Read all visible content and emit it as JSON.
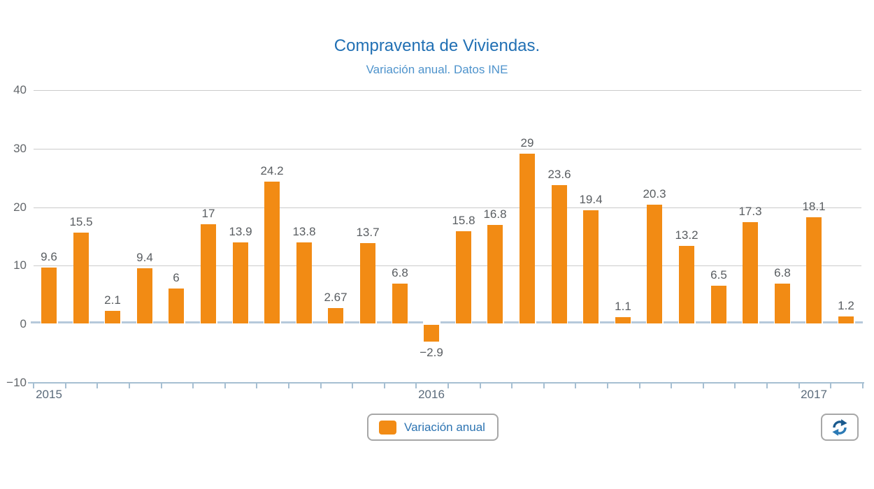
{
  "header": {
    "title": "Compraventa de Viviendas.",
    "subtitle": "Variación anual. Datos INE"
  },
  "legend": {
    "label": "Variación anual"
  },
  "icons": {
    "refresh": "refresh-icon",
    "legend_swatch": "legend-swatch-icon"
  },
  "colors": {
    "bar": "#f28b14",
    "title": "#2170b4",
    "subtitle": "#4e93cc",
    "grid": "#cbcbcb",
    "axis": "#a6bfd2",
    "zero_dash": "#b6c9da",
    "value_label": "#595d61",
    "y_tick_label": "#63676b",
    "year_label": "#5b6b7b",
    "legend_text": "#2d74b2",
    "box_border": "#a7a7a7",
    "icon_dark_blue": "#1a5a8e",
    "icon_light_blue": "#2b7ab5"
  },
  "chart_data": {
    "type": "bar",
    "title": "Compraventa de Viviendas.",
    "subtitle": "Variación anual. Datos INE",
    "xlabel": "",
    "ylabel": "",
    "ylim": [
      -10,
      40
    ],
    "grid": true,
    "legend_position": "bottom",
    "series": [
      {
        "name": "Variación anual",
        "values": [
          9.6,
          15.5,
          2.1,
          9.4,
          6,
          17,
          13.9,
          24.2,
          13.8,
          2.67,
          13.7,
          6.8,
          -2.9,
          15.8,
          16.8,
          29,
          23.6,
          19.4,
          1.1,
          20.3,
          13.2,
          6.5,
          17.3,
          6.8,
          18.1,
          1.2
        ]
      }
    ],
    "bar_labels": [
      "9.6",
      "15.5",
      "2.1",
      "9.4",
      "6",
      "17",
      "13.9",
      "24.2",
      "13.8",
      "2.67",
      "13.7",
      "6.8",
      "−2.9",
      "15.8",
      "16.8",
      "29",
      "23.6",
      "19.4",
      "1.1",
      "20.3",
      "13.2",
      "6.5",
      "17.3",
      "6.8",
      "18.1",
      "1.2"
    ],
    "x_axis": {
      "labels": [
        {
          "index": 0,
          "label": "2015"
        },
        {
          "index": 12,
          "label": "2016"
        },
        {
          "index": 24,
          "label": "2017"
        }
      ]
    },
    "y_axis": {
      "ticks": [
        {
          "value": 40,
          "label": "40"
        },
        {
          "value": 30,
          "label": "30"
        },
        {
          "value": 20,
          "label": "20"
        },
        {
          "value": 10,
          "label": "10"
        },
        {
          "value": 0,
          "label": "0"
        },
        {
          "value": -10,
          "label": "−10"
        }
      ]
    }
  }
}
